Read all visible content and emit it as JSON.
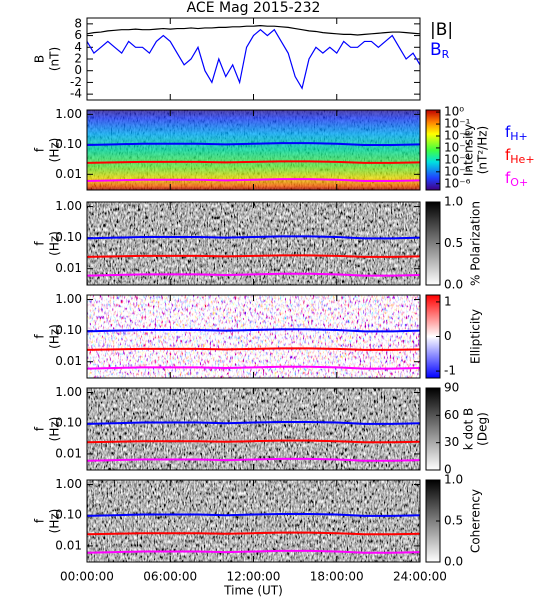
{
  "chart_data": [
    {
      "type": "line",
      "title": "ACE Mag 2015-232",
      "ylabel": [
        "B",
        "(nT)"
      ],
      "xlim": [
        0,
        24
      ],
      "ylim": [
        -5,
        9
      ],
      "yticks": [
        -4,
        -2,
        0,
        2,
        4,
        6,
        8
      ],
      "x": [
        0,
        0.5,
        1,
        1.5,
        2,
        2.5,
        3,
        3.5,
        4,
        4.5,
        5,
        5.5,
        6,
        6.5,
        7,
        7.5,
        8,
        8.5,
        9,
        9.5,
        10,
        10.5,
        11,
        11.5,
        12,
        12.5,
        13,
        13.5,
        14,
        14.5,
        15,
        15.5,
        16,
        16.5,
        17,
        17.5,
        18,
        18.5,
        19,
        19.5,
        20,
        20.5,
        21,
        21.5,
        22,
        22.5,
        23,
        23.5,
        24
      ],
      "series": [
        {
          "name": "|B|",
          "color": "#000000",
          "values": [
            6.3,
            6.5,
            6.6,
            6.8,
            6.9,
            7.0,
            7.0,
            7.1,
            7.0,
            7.0,
            7.1,
            7.2,
            7.1,
            7.2,
            7.2,
            7.3,
            7.2,
            7.3,
            7.3,
            7.4,
            7.4,
            7.5,
            7.5,
            7.6,
            7.6,
            7.7,
            7.6,
            7.6,
            7.5,
            7.4,
            7.2,
            7.0,
            6.8,
            6.7,
            6.5,
            6.4,
            6.3,
            6.2,
            6.2,
            6.1,
            6.2,
            6.3,
            6.4,
            6.5,
            6.6,
            6.6,
            6.5,
            6.4,
            6.3
          ]
        },
        {
          "name": "B",
          "name_sub": "R",
          "color": "#0000ff",
          "values": [
            5,
            3,
            4,
            5,
            4,
            3,
            5,
            4,
            4,
            3,
            5,
            6,
            5,
            3,
            1,
            2,
            4,
            0,
            -2,
            2,
            -1,
            1,
            -2,
            4,
            6,
            7,
            6,
            7,
            5,
            3,
            -1,
            -3,
            2,
            4,
            3,
            4,
            3,
            5,
            4,
            4,
            5,
            5,
            4,
            5,
            6,
            4,
            2,
            3,
            1
          ]
        }
      ]
    },
    {
      "type": "spectrogram",
      "ylabel": [
        "f",
        "(Hz)"
      ],
      "ylog": true,
      "xlim": [
        0,
        24
      ],
      "ylim": [
        0.003,
        1.4
      ],
      "yticks": [
        {
          "value": 1,
          "label": "1.00"
        },
        {
          "value": 0.1,
          "label": "0.10"
        },
        {
          "value": 0.01,
          "label": "0.01"
        }
      ],
      "colormap": "rainbow",
      "colorbar_label": [
        "Intensity",
        "(nT²/Hz)"
      ],
      "clog": true,
      "clim": [
        3e-07,
        1.5
      ],
      "cticks": [
        {
          "value": 1,
          "label": "10⁰"
        },
        {
          "value": 0.1,
          "label": "10⁻¹"
        },
        {
          "value": 0.01,
          "label": "10⁻²"
        },
        {
          "value": 0.001,
          "label": "10⁻³"
        },
        {
          "value": 0.0001,
          "label": "10⁻⁴"
        },
        {
          "value": 1e-05,
          "label": "10⁻⁵"
        },
        {
          "value": 1e-06,
          "label": "10⁻⁶"
        }
      ],
      "x": [
        0,
        2,
        4,
        6,
        8,
        10,
        12,
        14,
        16,
        18,
        20,
        22,
        24
      ],
      "series": [
        {
          "name": "f",
          "name_sub": "H+",
          "color": "#0000ff",
          "values": [
            0.095,
            0.1,
            0.105,
            0.105,
            0.105,
            0.1,
            0.105,
            0.11,
            0.11,
            0.105,
            0.095,
            0.095,
            0.1
          ]
        },
        {
          "name": "f",
          "name_sub": "He+",
          "color": "#ff0000",
          "values": [
            0.024,
            0.025,
            0.026,
            0.026,
            0.026,
            0.025,
            0.026,
            0.027,
            0.027,
            0.026,
            0.024,
            0.024,
            0.025
          ]
        },
        {
          "name": "f",
          "name_sub": "O+",
          "color": "#ff00ff",
          "values": [
            0.006,
            0.0063,
            0.0066,
            0.0066,
            0.0066,
            0.0063,
            0.0066,
            0.0069,
            0.0069,
            0.0066,
            0.006,
            0.006,
            0.0063
          ]
        }
      ]
    },
    {
      "type": "spectrogram",
      "ylabel": [
        "f",
        "(Hz)"
      ],
      "ylog": true,
      "xlim": [
        0,
        24
      ],
      "ylim": [
        0.003,
        1.4
      ],
      "yticks": [
        {
          "value": 1,
          "label": "1.00"
        },
        {
          "value": 0.1,
          "label": "0.10"
        },
        {
          "value": 0.01,
          "label": "0.01"
        }
      ],
      "colormap": "gray",
      "colorbar_label": [
        "% Polarization"
      ],
      "clim": [
        0,
        1
      ],
      "cticks": [
        {
          "value": 0,
          "label": "0.0"
        },
        {
          "value": 0.5,
          "label": "0.5"
        },
        {
          "value": 1,
          "label": "1.0"
        }
      ],
      "x": [
        0,
        2,
        4,
        6,
        8,
        10,
        12,
        14,
        16,
        18,
        20,
        22,
        24
      ],
      "series": [
        {
          "color": "#0000ff",
          "values": [
            0.095,
            0.1,
            0.105,
            0.105,
            0.105,
            0.1,
            0.105,
            0.11,
            0.11,
            0.105,
            0.095,
            0.095,
            0.1
          ]
        },
        {
          "color": "#ff0000",
          "values": [
            0.024,
            0.025,
            0.026,
            0.026,
            0.026,
            0.025,
            0.026,
            0.027,
            0.027,
            0.026,
            0.024,
            0.024,
            0.025
          ]
        },
        {
          "color": "#ff00ff",
          "values": [
            0.006,
            0.0063,
            0.0066,
            0.0066,
            0.0066,
            0.0063,
            0.0066,
            0.0069,
            0.0069,
            0.0066,
            0.006,
            0.006,
            0.0063
          ]
        }
      ]
    },
    {
      "type": "spectrogram",
      "ylabel": [
        "f",
        "(Hz)"
      ],
      "ylog": true,
      "xlim": [
        0,
        24
      ],
      "ylim": [
        0.003,
        1.4
      ],
      "yticks": [
        {
          "value": 1,
          "label": "1.00"
        },
        {
          "value": 0.1,
          "label": "0.10"
        },
        {
          "value": 0.01,
          "label": "0.01"
        }
      ],
      "colormap": "bwr",
      "colorbar_label": [
        "Ellipticity"
      ],
      "clim": [
        -1.2,
        1.2
      ],
      "cticks": [
        -1,
        0,
        1
      ],
      "x": [
        0,
        2,
        4,
        6,
        8,
        10,
        12,
        14,
        16,
        18,
        20,
        22,
        24
      ],
      "series": [
        {
          "color": "#0000ff",
          "values": [
            0.095,
            0.1,
            0.105,
            0.105,
            0.105,
            0.1,
            0.105,
            0.11,
            0.11,
            0.105,
            0.095,
            0.095,
            0.1
          ]
        },
        {
          "color": "#ff0000",
          "values": [
            0.024,
            0.025,
            0.026,
            0.026,
            0.026,
            0.025,
            0.026,
            0.027,
            0.027,
            0.026,
            0.024,
            0.024,
            0.025
          ]
        },
        {
          "color": "#ff00ff",
          "values": [
            0.006,
            0.0063,
            0.0066,
            0.0066,
            0.0066,
            0.0063,
            0.0066,
            0.0069,
            0.0069,
            0.0066,
            0.006,
            0.006,
            0.0063
          ]
        }
      ]
    },
    {
      "type": "spectrogram",
      "ylabel": [
        "f",
        "(Hz)"
      ],
      "ylog": true,
      "xlim": [
        0,
        24
      ],
      "ylim": [
        0.003,
        1.4
      ],
      "yticks": [
        {
          "value": 1,
          "label": "1.00"
        },
        {
          "value": 0.1,
          "label": "0.10"
        },
        {
          "value": 0.01,
          "label": "0.01"
        }
      ],
      "colormap": "gray",
      "colorbar_label": [
        "k dot B",
        "(Deg)"
      ],
      "clim": [
        0,
        90
      ],
      "cticks": [
        0,
        30,
        60,
        90
      ],
      "x": [
        0,
        2,
        4,
        6,
        8,
        10,
        12,
        14,
        16,
        18,
        20,
        22,
        24
      ],
      "series": [
        {
          "color": "#0000ff",
          "values": [
            0.095,
            0.1,
            0.105,
            0.105,
            0.105,
            0.1,
            0.105,
            0.11,
            0.11,
            0.105,
            0.095,
            0.095,
            0.1
          ]
        },
        {
          "color": "#ff0000",
          "values": [
            0.024,
            0.025,
            0.026,
            0.026,
            0.026,
            0.025,
            0.026,
            0.027,
            0.027,
            0.026,
            0.024,
            0.024,
            0.025
          ]
        },
        {
          "color": "#ff00ff",
          "values": [
            0.006,
            0.0063,
            0.0066,
            0.0066,
            0.0066,
            0.0063,
            0.0066,
            0.0069,
            0.0069,
            0.0066,
            0.006,
            0.006,
            0.0063
          ]
        }
      ]
    },
    {
      "type": "spectrogram",
      "ylabel": [
        "f",
        "(Hz)"
      ],
      "ylog": true,
      "xlim": [
        0,
        24
      ],
      "ylim": [
        0.003,
        1.4
      ],
      "yticks": [
        {
          "value": 1,
          "label": "1.00"
        },
        {
          "value": 0.1,
          "label": "0.10"
        },
        {
          "value": 0.01,
          "label": "0.01"
        }
      ],
      "colormap": "gray",
      "colorbar_label": [
        "Coherency"
      ],
      "clim": [
        0,
        1
      ],
      "cticks": [
        {
          "value": 0,
          "label": "0.0"
        },
        {
          "value": 0.5,
          "label": "0.5"
        },
        {
          "value": 1,
          "label": "1.0"
        }
      ],
      "xlabel": "Time (UT)",
      "xticks": [
        {
          "value": 0,
          "label": "00:00:00"
        },
        {
          "value": 6,
          "label": "06:00:00"
        },
        {
          "value": 12,
          "label": "12:00:00"
        },
        {
          "value": 18,
          "label": "18:00:00"
        },
        {
          "value": 24,
          "label": "24:00:00"
        }
      ],
      "x": [
        0,
        2,
        4,
        6,
        8,
        10,
        12,
        14,
        16,
        18,
        20,
        22,
        24
      ],
      "series": [
        {
          "color": "#0000ff",
          "values": [
            0.095,
            0.1,
            0.105,
            0.105,
            0.105,
            0.1,
            0.105,
            0.11,
            0.11,
            0.105,
            0.095,
            0.095,
            0.1
          ]
        },
        {
          "color": "#ff0000",
          "values": [
            0.024,
            0.025,
            0.026,
            0.026,
            0.026,
            0.025,
            0.026,
            0.027,
            0.027,
            0.026,
            0.024,
            0.024,
            0.025
          ]
        },
        {
          "color": "#ff00ff",
          "values": [
            0.006,
            0.0063,
            0.0066,
            0.0066,
            0.0066,
            0.0063,
            0.0066,
            0.0069,
            0.0069,
            0.0066,
            0.006,
            0.006,
            0.0063
          ]
        }
      ]
    }
  ]
}
